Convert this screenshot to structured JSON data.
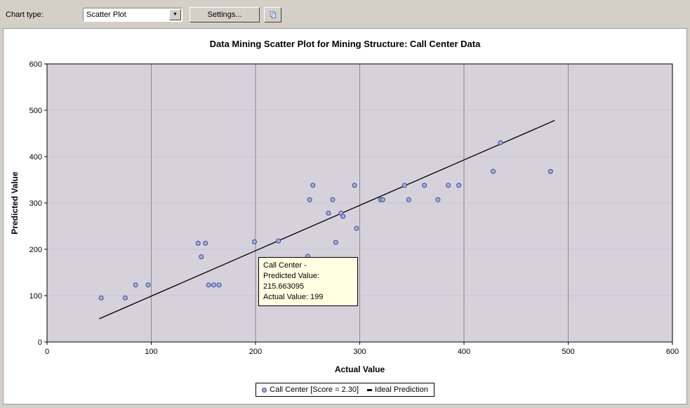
{
  "toolbar": {
    "chart_type_label": "Chart type:",
    "chart_type_value": "Scatter Plot",
    "settings_label": "Settings..."
  },
  "chart_data": {
    "type": "scatter",
    "title": "Data Mining Scatter Plot for Mining Structure: Call Center Data",
    "xlabel": "Actual Value",
    "ylabel": "Predicted Value",
    "xlim": [
      0,
      600
    ],
    "ylim": [
      0,
      600
    ],
    "xticks": [
      0,
      100,
      200,
      300,
      400,
      500,
      600
    ],
    "yticks": [
      0,
      100,
      200,
      300,
      400,
      500,
      600
    ],
    "grid": "on",
    "legend_position": "bottom",
    "series": [
      {
        "name": "Call Center [Score = 2.30]",
        "type": "scatter",
        "points": [
          [
            52,
            95
          ],
          [
            75,
            95
          ],
          [
            85,
            123
          ],
          [
            97,
            123
          ],
          [
            145,
            213
          ],
          [
            152,
            213
          ],
          [
            148,
            184
          ],
          [
            155,
            123
          ],
          [
            160,
            123
          ],
          [
            165,
            123
          ],
          [
            199,
            216
          ],
          [
            222,
            218
          ],
          [
            250,
            185
          ],
          [
            252,
            307
          ],
          [
            255,
            338
          ],
          [
            270,
            278
          ],
          [
            274,
            307
          ],
          [
            277,
            215
          ],
          [
            282,
            278
          ],
          [
            284,
            271
          ],
          [
            295,
            338
          ],
          [
            297,
            245
          ],
          [
            320,
            307
          ],
          [
            322,
            307
          ],
          [
            343,
            338
          ],
          [
            347,
            307
          ],
          [
            362,
            338
          ],
          [
            375,
            307
          ],
          [
            385,
            338
          ],
          [
            395,
            338
          ],
          [
            428,
            368
          ],
          [
            435,
            430
          ],
          [
            483,
            368
          ]
        ]
      },
      {
        "name": "Ideal Prediction",
        "type": "line",
        "points": [
          [
            50,
            50
          ],
          [
            487,
            478
          ]
        ]
      }
    ]
  },
  "tooltip": {
    "line1": "Call Center -",
    "line2": "Predicted Value: 215.663095",
    "line3": "Actual Value: 199"
  },
  "colors": {
    "point_fill": "#a6aede",
    "point_stroke": "#3a4a90",
    "ideal_line": "#000000",
    "plot_bg": "#d5d2dc",
    "grid_vertical": "#8c889a",
    "grid_horizontal": "#c8c4d0",
    "tooltip_bg": "#ffffe1",
    "toolbar_bg": "#d4d0c8"
  }
}
